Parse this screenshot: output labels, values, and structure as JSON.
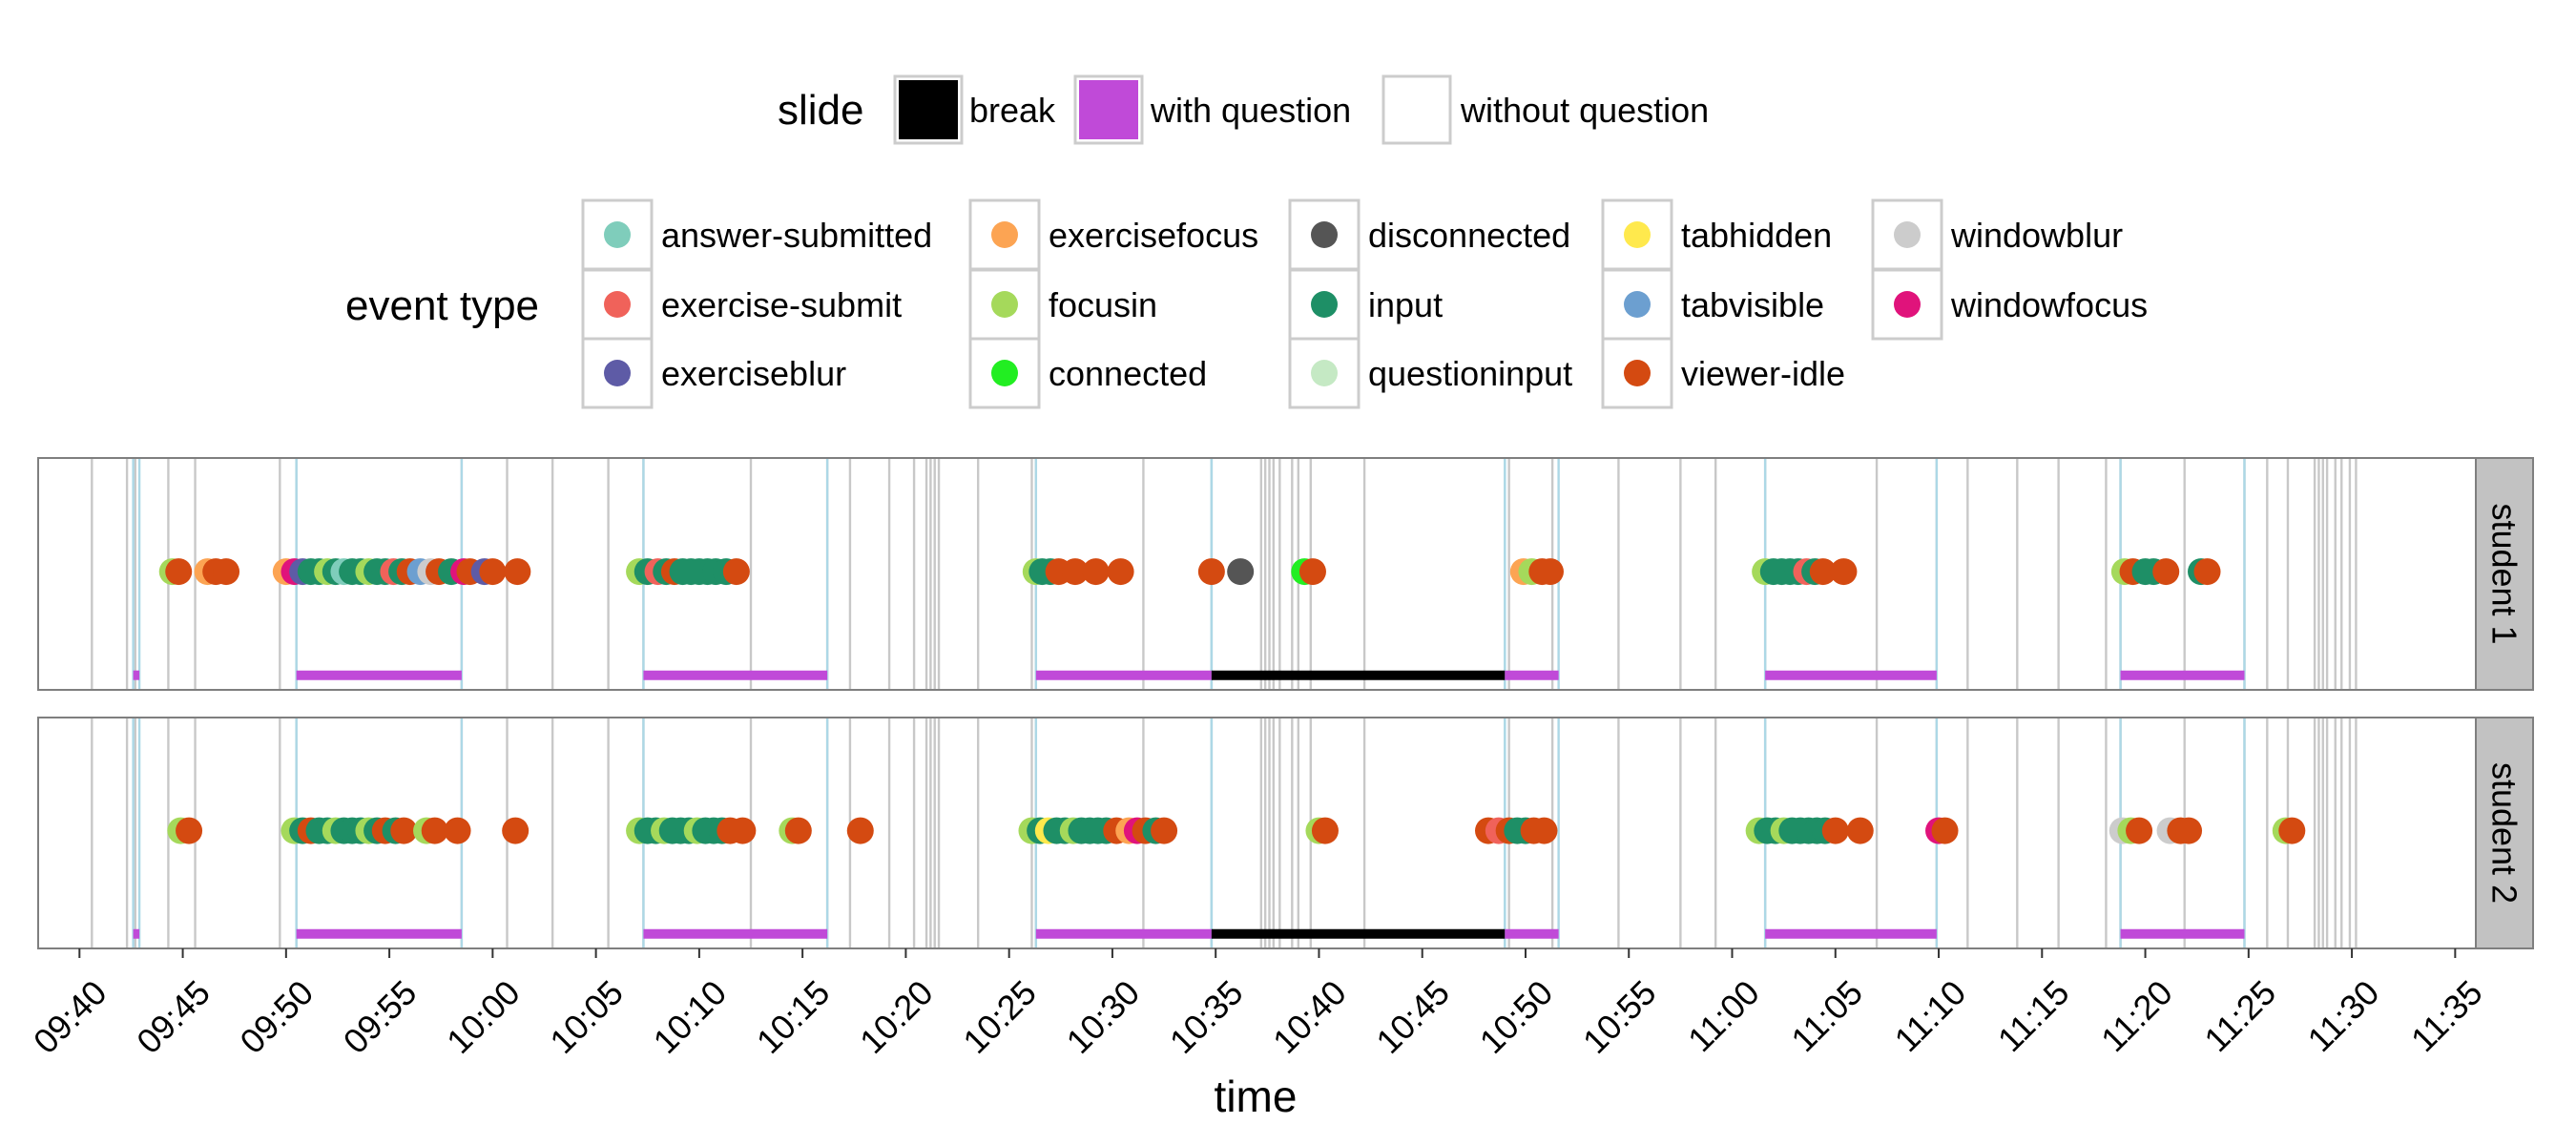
{
  "chart_data": {
    "type": "scatter",
    "xlabel": "time",
    "x_range": [
      "09:38",
      "11:36"
    ],
    "x_ticks": [
      "09:40",
      "09:45",
      "09:50",
      "09:55",
      "10:00",
      "10:05",
      "10:10",
      "10:15",
      "10:20",
      "10:25",
      "10:30",
      "10:35",
      "10:40",
      "10:45",
      "10:50",
      "10:55",
      "11:00",
      "11:05",
      "11:10",
      "11:15",
      "11:20",
      "11:25",
      "11:30",
      "11:35"
    ],
    "grid": true,
    "legend_position": "top",
    "slide_legend": {
      "title": "slide",
      "items": [
        {
          "label": "break",
          "color": "#000000"
        },
        {
          "label": "with question",
          "color": "#c04ad8"
        },
        {
          "label": "without question",
          "color": "#ffffff"
        }
      ]
    },
    "event_legend": {
      "title": "event type",
      "items": [
        {
          "label": "answer-submitted",
          "color": "#7fcdbb"
        },
        {
          "label": "exercise-submit",
          "color": "#f0625a"
        },
        {
          "label": "exerciseblur",
          "color": "#5e5ba6"
        },
        {
          "label": "exercisefocus",
          "color": "#fca453"
        },
        {
          "label": "focusin",
          "color": "#a5d95b"
        },
        {
          "label": "connected",
          "color": "#22ee22"
        },
        {
          "label": "disconnected",
          "color": "#555555"
        },
        {
          "label": "input",
          "color": "#1e8f66"
        },
        {
          "label": "questioninput",
          "color": "#c5e9c4"
        },
        {
          "label": "tabhidden",
          "color": "#ffe94d"
        },
        {
          "label": "tabvisible",
          "color": "#6c9fd0"
        },
        {
          "label": "viewer-idle",
          "color": "#d44a11"
        },
        {
          "label": "windowblur",
          "color": "#cccccc"
        },
        {
          "label": "windowfocus",
          "color": "#e0137b"
        }
      ]
    },
    "slide_segments": [
      {
        "type": "with question",
        "start": "09:42.6",
        "end": "09:42.9"
      },
      {
        "type": "with question",
        "start": "09:50.5",
        "end": "09:58.5"
      },
      {
        "type": "with question",
        "start": "10:07.3",
        "end": "10:16.2"
      },
      {
        "type": "with question",
        "start": "10:26.3",
        "end": "10:34.8"
      },
      {
        "type": "break",
        "start": "10:34.8",
        "end": "10:49.0"
      },
      {
        "type": "with question",
        "start": "10:49.0",
        "end": "10:51.6"
      },
      {
        "type": "with question",
        "start": "11:01.6",
        "end": "11:09.9"
      },
      {
        "type": "with question",
        "start": "11:18.8",
        "end": "11:24.8"
      }
    ],
    "slide_change_lines": [
      "09:40.6",
      "09:42.3",
      "09:42.7",
      "09:44.3",
      "09:45.6",
      "09:49.7",
      "09:50.5",
      "09:58.5",
      "10:00.7",
      "10:02.9",
      "10:05.6",
      "10:07.3",
      "10:12.5",
      "10:16.2",
      "10:17.3",
      "10:19.2",
      "10:20.4",
      "10:21.0",
      "10:21.2",
      "10:21.4",
      "10:21.6",
      "10:23.5",
      "10:26.1",
      "10:26.3",
      "10:31.5",
      "10:34.8",
      "10:37.2",
      "10:37.4",
      "10:37.6",
      "10:37.8",
      "10:38.1",
      "10:38.7",
      "10:39.0",
      "10:39.6",
      "10:42.2",
      "10:49.2",
      "10:51.3",
      "10:54.5",
      "10:57.5",
      "10:59.2",
      "11:01.6",
      "11:07.0",
      "11:09.9",
      "11:11.4",
      "11:13.8",
      "11:15.8",
      "11:18.1",
      "11:18.8",
      "11:21.9",
      "11:24.8",
      "11:25.9",
      "11:26.9",
      "11:28.2",
      "11:28.4",
      "11:28.6",
      "11:28.8",
      "11:29.2",
      "11:29.5",
      "11:29.9",
      "11:30.2"
    ],
    "panels": [
      {
        "name": "student 1",
        "points": [
          {
            "x": "09:44.5",
            "type": "focusin"
          },
          {
            "x": "09:44.8",
            "type": "viewer-idle"
          },
          {
            "x": "09:46.2",
            "type": "exercisefocus"
          },
          {
            "x": "09:46.6",
            "type": "viewer-idle"
          },
          {
            "x": "09:47.1",
            "type": "viewer-idle"
          },
          {
            "x": "09:50.0",
            "type": "exercisefocus"
          },
          {
            "x": "09:50.4",
            "type": "windowfocus"
          },
          {
            "x": "09:50.8",
            "type": "exerciseblur"
          },
          {
            "x": "09:51.2",
            "type": "input"
          },
          {
            "x": "09:51.6",
            "type": "input"
          },
          {
            "x": "09:52.0",
            "type": "focusin"
          },
          {
            "x": "09:52.4",
            "type": "input"
          },
          {
            "x": "09:52.8",
            "type": "answer-submitted"
          },
          {
            "x": "09:53.2",
            "type": "input"
          },
          {
            "x": "09:53.6",
            "type": "input"
          },
          {
            "x": "09:54.0",
            "type": "focusin"
          },
          {
            "x": "09:54.4",
            "type": "input"
          },
          {
            "x": "09:54.8",
            "type": "input"
          },
          {
            "x": "09:55.2",
            "type": "exercise-submit"
          },
          {
            "x": "09:55.6",
            "type": "input"
          },
          {
            "x": "09:56.0",
            "type": "viewer-idle"
          },
          {
            "x": "09:56.5",
            "type": "tabvisible"
          },
          {
            "x": "09:57.0",
            "type": "windowblur"
          },
          {
            "x": "09:57.4",
            "type": "viewer-idle"
          },
          {
            "x": "09:58.0",
            "type": "input"
          },
          {
            "x": "09:58.6",
            "type": "windowfocus"
          },
          {
            "x": "09:58.9",
            "type": "viewer-idle"
          },
          {
            "x": "09:59.6",
            "type": "exerciseblur"
          },
          {
            "x": "10:00.0",
            "type": "viewer-idle"
          },
          {
            "x": "10:01.2",
            "type": "viewer-idle"
          },
          {
            "x": "10:07.1",
            "type": "focusin"
          },
          {
            "x": "10:07.5",
            "type": "input"
          },
          {
            "x": "10:08.0",
            "type": "exercise-submit"
          },
          {
            "x": "10:08.4",
            "type": "input"
          },
          {
            "x": "10:08.8",
            "type": "viewer-idle"
          },
          {
            "x": "10:09.2",
            "type": "input"
          },
          {
            "x": "10:09.6",
            "type": "input"
          },
          {
            "x": "10:10.0",
            "type": "input"
          },
          {
            "x": "10:10.4",
            "type": "input"
          },
          {
            "x": "10:10.8",
            "type": "input"
          },
          {
            "x": "10:11.3",
            "type": "input"
          },
          {
            "x": "10:11.8",
            "type": "viewer-idle"
          },
          {
            "x": "10:26.3",
            "type": "focusin"
          },
          {
            "x": "10:26.6",
            "type": "input"
          },
          {
            "x": "10:27.0",
            "type": "input"
          },
          {
            "x": "10:27.4",
            "type": "viewer-idle"
          },
          {
            "x": "10:28.2",
            "type": "viewer-idle"
          },
          {
            "x": "10:29.2",
            "type": "viewer-idle"
          },
          {
            "x": "10:30.4",
            "type": "viewer-idle"
          },
          {
            "x": "10:34.8",
            "type": "viewer-idle"
          },
          {
            "x": "10:36.2",
            "type": "disconnected"
          },
          {
            "x": "10:39.3",
            "type": "connected"
          },
          {
            "x": "10:39.7",
            "type": "viewer-idle"
          },
          {
            "x": "10:49.9",
            "type": "exercisefocus"
          },
          {
            "x": "10:50.3",
            "type": "focusin"
          },
          {
            "x": "10:50.8",
            "type": "viewer-idle"
          },
          {
            "x": "10:51.2",
            "type": "viewer-idle"
          },
          {
            "x": "11:01.6",
            "type": "focusin"
          },
          {
            "x": "11:02.0",
            "type": "input"
          },
          {
            "x": "11:02.4",
            "type": "input"
          },
          {
            "x": "11:02.8",
            "type": "input"
          },
          {
            "x": "11:03.2",
            "type": "input"
          },
          {
            "x": "11:03.6",
            "type": "exercise-submit"
          },
          {
            "x": "11:04.0",
            "type": "input"
          },
          {
            "x": "11:04.4",
            "type": "viewer-idle"
          },
          {
            "x": "11:05.4",
            "type": "viewer-idle"
          },
          {
            "x": "11:19.0",
            "type": "focusin"
          },
          {
            "x": "11:19.4",
            "type": "viewer-idle"
          },
          {
            "x": "11:20.0",
            "type": "input"
          },
          {
            "x": "11:20.4",
            "type": "input"
          },
          {
            "x": "11:21.0",
            "type": "viewer-idle"
          },
          {
            "x": "11:22.7",
            "type": "input"
          },
          {
            "x": "11:23.0",
            "type": "viewer-idle"
          }
        ]
      },
      {
        "name": "student 2",
        "points": [
          {
            "x": "09:44.9",
            "type": "focusin"
          },
          {
            "x": "09:45.3",
            "type": "viewer-idle"
          },
          {
            "x": "09:50.4",
            "type": "focusin"
          },
          {
            "x": "09:50.8",
            "type": "input"
          },
          {
            "x": "09:51.2",
            "type": "viewer-idle"
          },
          {
            "x": "09:51.6",
            "type": "input"
          },
          {
            "x": "09:52.0",
            "type": "input"
          },
          {
            "x": "09:52.4",
            "type": "focusin"
          },
          {
            "x": "09:52.8",
            "type": "input"
          },
          {
            "x": "09:53.2",
            "type": "input"
          },
          {
            "x": "09:53.6",
            "type": "input"
          },
          {
            "x": "09:54.0",
            "type": "focusin"
          },
          {
            "x": "09:54.4",
            "type": "input"
          },
          {
            "x": "09:54.8",
            "type": "viewer-idle"
          },
          {
            "x": "09:55.3",
            "type": "input"
          },
          {
            "x": "09:55.7",
            "type": "viewer-idle"
          },
          {
            "x": "09:56.8",
            "type": "focusin"
          },
          {
            "x": "09:57.2",
            "type": "viewer-idle"
          },
          {
            "x": "09:58.3",
            "type": "viewer-idle"
          },
          {
            "x": "10:01.1",
            "type": "viewer-idle"
          },
          {
            "x": "10:07.1",
            "type": "focusin"
          },
          {
            "x": "10:07.5",
            "type": "input"
          },
          {
            "x": "10:07.9",
            "type": "input"
          },
          {
            "x": "10:08.3",
            "type": "focusin"
          },
          {
            "x": "10:08.7",
            "type": "input"
          },
          {
            "x": "10:09.1",
            "type": "input"
          },
          {
            "x": "10:09.5",
            "type": "input"
          },
          {
            "x": "10:09.9",
            "type": "focusin"
          },
          {
            "x": "10:10.3",
            "type": "input"
          },
          {
            "x": "10:10.7",
            "type": "input"
          },
          {
            "x": "10:11.1",
            "type": "input"
          },
          {
            "x": "10:11.5",
            "type": "viewer-idle"
          },
          {
            "x": "10:12.1",
            "type": "viewer-idle"
          },
          {
            "x": "10:14.5",
            "type": "focusin"
          },
          {
            "x": "10:14.8",
            "type": "viewer-idle"
          },
          {
            "x": "10:17.8",
            "type": "viewer-idle"
          },
          {
            "x": "10:26.1",
            "type": "focusin"
          },
          {
            "x": "10:26.5",
            "type": "input"
          },
          {
            "x": "10:26.9",
            "type": "tabhidden"
          },
          {
            "x": "10:27.3",
            "type": "input"
          },
          {
            "x": "10:27.7",
            "type": "input"
          },
          {
            "x": "10:28.1",
            "type": "focusin"
          },
          {
            "x": "10:28.5",
            "type": "input"
          },
          {
            "x": "10:28.9",
            "type": "input"
          },
          {
            "x": "10:29.3",
            "type": "input"
          },
          {
            "x": "10:29.7",
            "type": "input"
          },
          {
            "x": "10:30.2",
            "type": "viewer-idle"
          },
          {
            "x": "10:30.8",
            "type": "exercisefocus"
          },
          {
            "x": "10:31.2",
            "type": "windowfocus"
          },
          {
            "x": "10:31.6",
            "type": "viewer-idle"
          },
          {
            "x": "10:32.1",
            "type": "input"
          },
          {
            "x": "10:32.5",
            "type": "viewer-idle"
          },
          {
            "x": "10:40.0",
            "type": "focusin"
          },
          {
            "x": "10:40.3",
            "type": "viewer-idle"
          },
          {
            "x": "10:48.2",
            "type": "viewer-idle"
          },
          {
            "x": "10:48.7",
            "type": "exercise-submit"
          },
          {
            "x": "10:49.2",
            "type": "viewer-idle"
          },
          {
            "x": "10:49.6",
            "type": "input"
          },
          {
            "x": "10:50.0",
            "type": "input"
          },
          {
            "x": "10:50.4",
            "type": "viewer-idle"
          },
          {
            "x": "10:50.9",
            "type": "viewer-idle"
          },
          {
            "x": "11:01.3",
            "type": "focusin"
          },
          {
            "x": "11:01.7",
            "type": "input"
          },
          {
            "x": "11:02.1",
            "type": "input"
          },
          {
            "x": "11:02.5",
            "type": "focusin"
          },
          {
            "x": "11:02.9",
            "type": "input"
          },
          {
            "x": "11:03.3",
            "type": "input"
          },
          {
            "x": "11:03.7",
            "type": "input"
          },
          {
            "x": "11:04.1",
            "type": "input"
          },
          {
            "x": "11:04.5",
            "type": "input"
          },
          {
            "x": "11:05.0",
            "type": "viewer-idle"
          },
          {
            "x": "11:06.2",
            "type": "viewer-idle"
          },
          {
            "x": "11:10.0",
            "type": "windowfocus"
          },
          {
            "x": "11:10.3",
            "type": "viewer-idle"
          },
          {
            "x": "11:18.9",
            "type": "windowblur"
          },
          {
            "x": "11:19.3",
            "type": "focusin"
          },
          {
            "x": "11:19.7",
            "type": "viewer-idle"
          },
          {
            "x": "11:21.2",
            "type": "windowblur"
          },
          {
            "x": "11:21.7",
            "type": "viewer-idle"
          },
          {
            "x": "11:22.1",
            "type": "viewer-idle"
          },
          {
            "x": "11:26.8",
            "type": "focusin"
          },
          {
            "x": "11:27.1",
            "type": "viewer-idle"
          }
        ]
      }
    ]
  }
}
